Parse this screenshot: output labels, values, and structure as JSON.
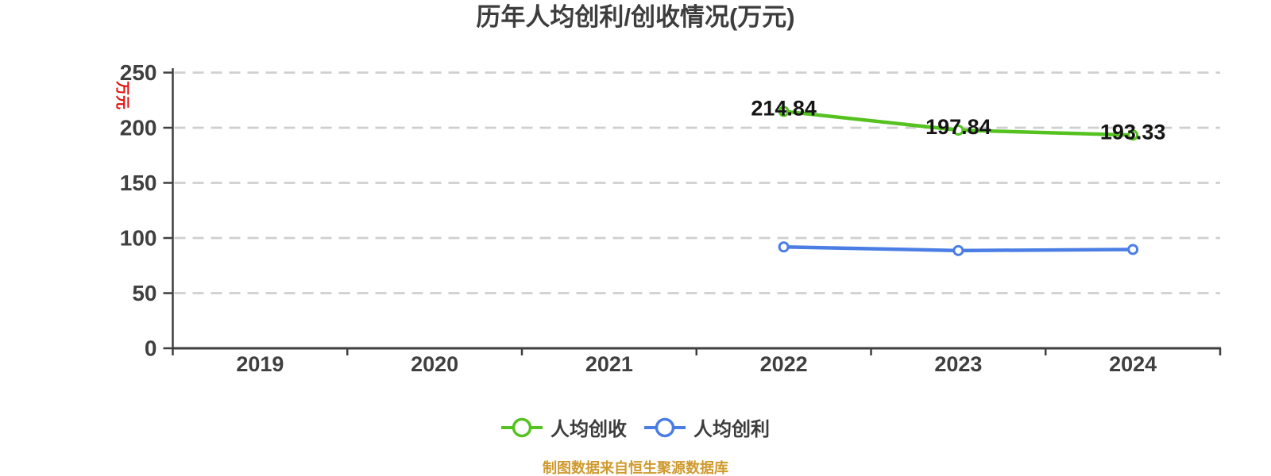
{
  "chart": {
    "title": "历年人均创利/创收情况(万元)",
    "y_axis_unit": "万元",
    "footer": "制图数据来自恒生聚源数据库",
    "colors": {
      "title_text": "#3d3d3d",
      "axis_line": "#3f3f3f",
      "tick_label": "#3f3f3f",
      "gridline": "#cfcfcf",
      "y_unit_red": "#e60f0f",
      "footer_orange": "#cf9a2e",
      "data_label": "#151515",
      "revenue_green": "#55c220",
      "profit_blue": "#4b7ee5"
    }
  },
  "chart_data": {
    "type": "line",
    "title": "历年人均创利/创收情况(万元)",
    "ylabel": "万元",
    "ylim": [
      0,
      250
    ],
    "y_tick_step": 50,
    "y_tick_labels": [
      "0",
      "50",
      "100",
      "150",
      "200",
      "250"
    ],
    "grid": "horizontal-dashed",
    "legend_position": "bottom-center",
    "categories": [
      "2019",
      "2020",
      "2021",
      "2022",
      "2023",
      "2024"
    ],
    "series": [
      {
        "key": "per-capita-revenue",
        "name": "人均创收",
        "color": "#55c220",
        "values": [
          null,
          null,
          null,
          214.84,
          197.84,
          193.33
        ],
        "point_labels": [
          null,
          null,
          null,
          "214.84",
          "197.84",
          "193.33"
        ]
      },
      {
        "key": "per-capita-profit",
        "name": "人均创利",
        "color": "#4b7ee5",
        "values": [
          null,
          null,
          null,
          91.9,
          88.6,
          89.6
        ],
        "point_labels": [
          null,
          null,
          null,
          null,
          null,
          null
        ],
        "values_estimated": true
      }
    ],
    "source_note": "制图数据来自恒生聚源数据库"
  }
}
